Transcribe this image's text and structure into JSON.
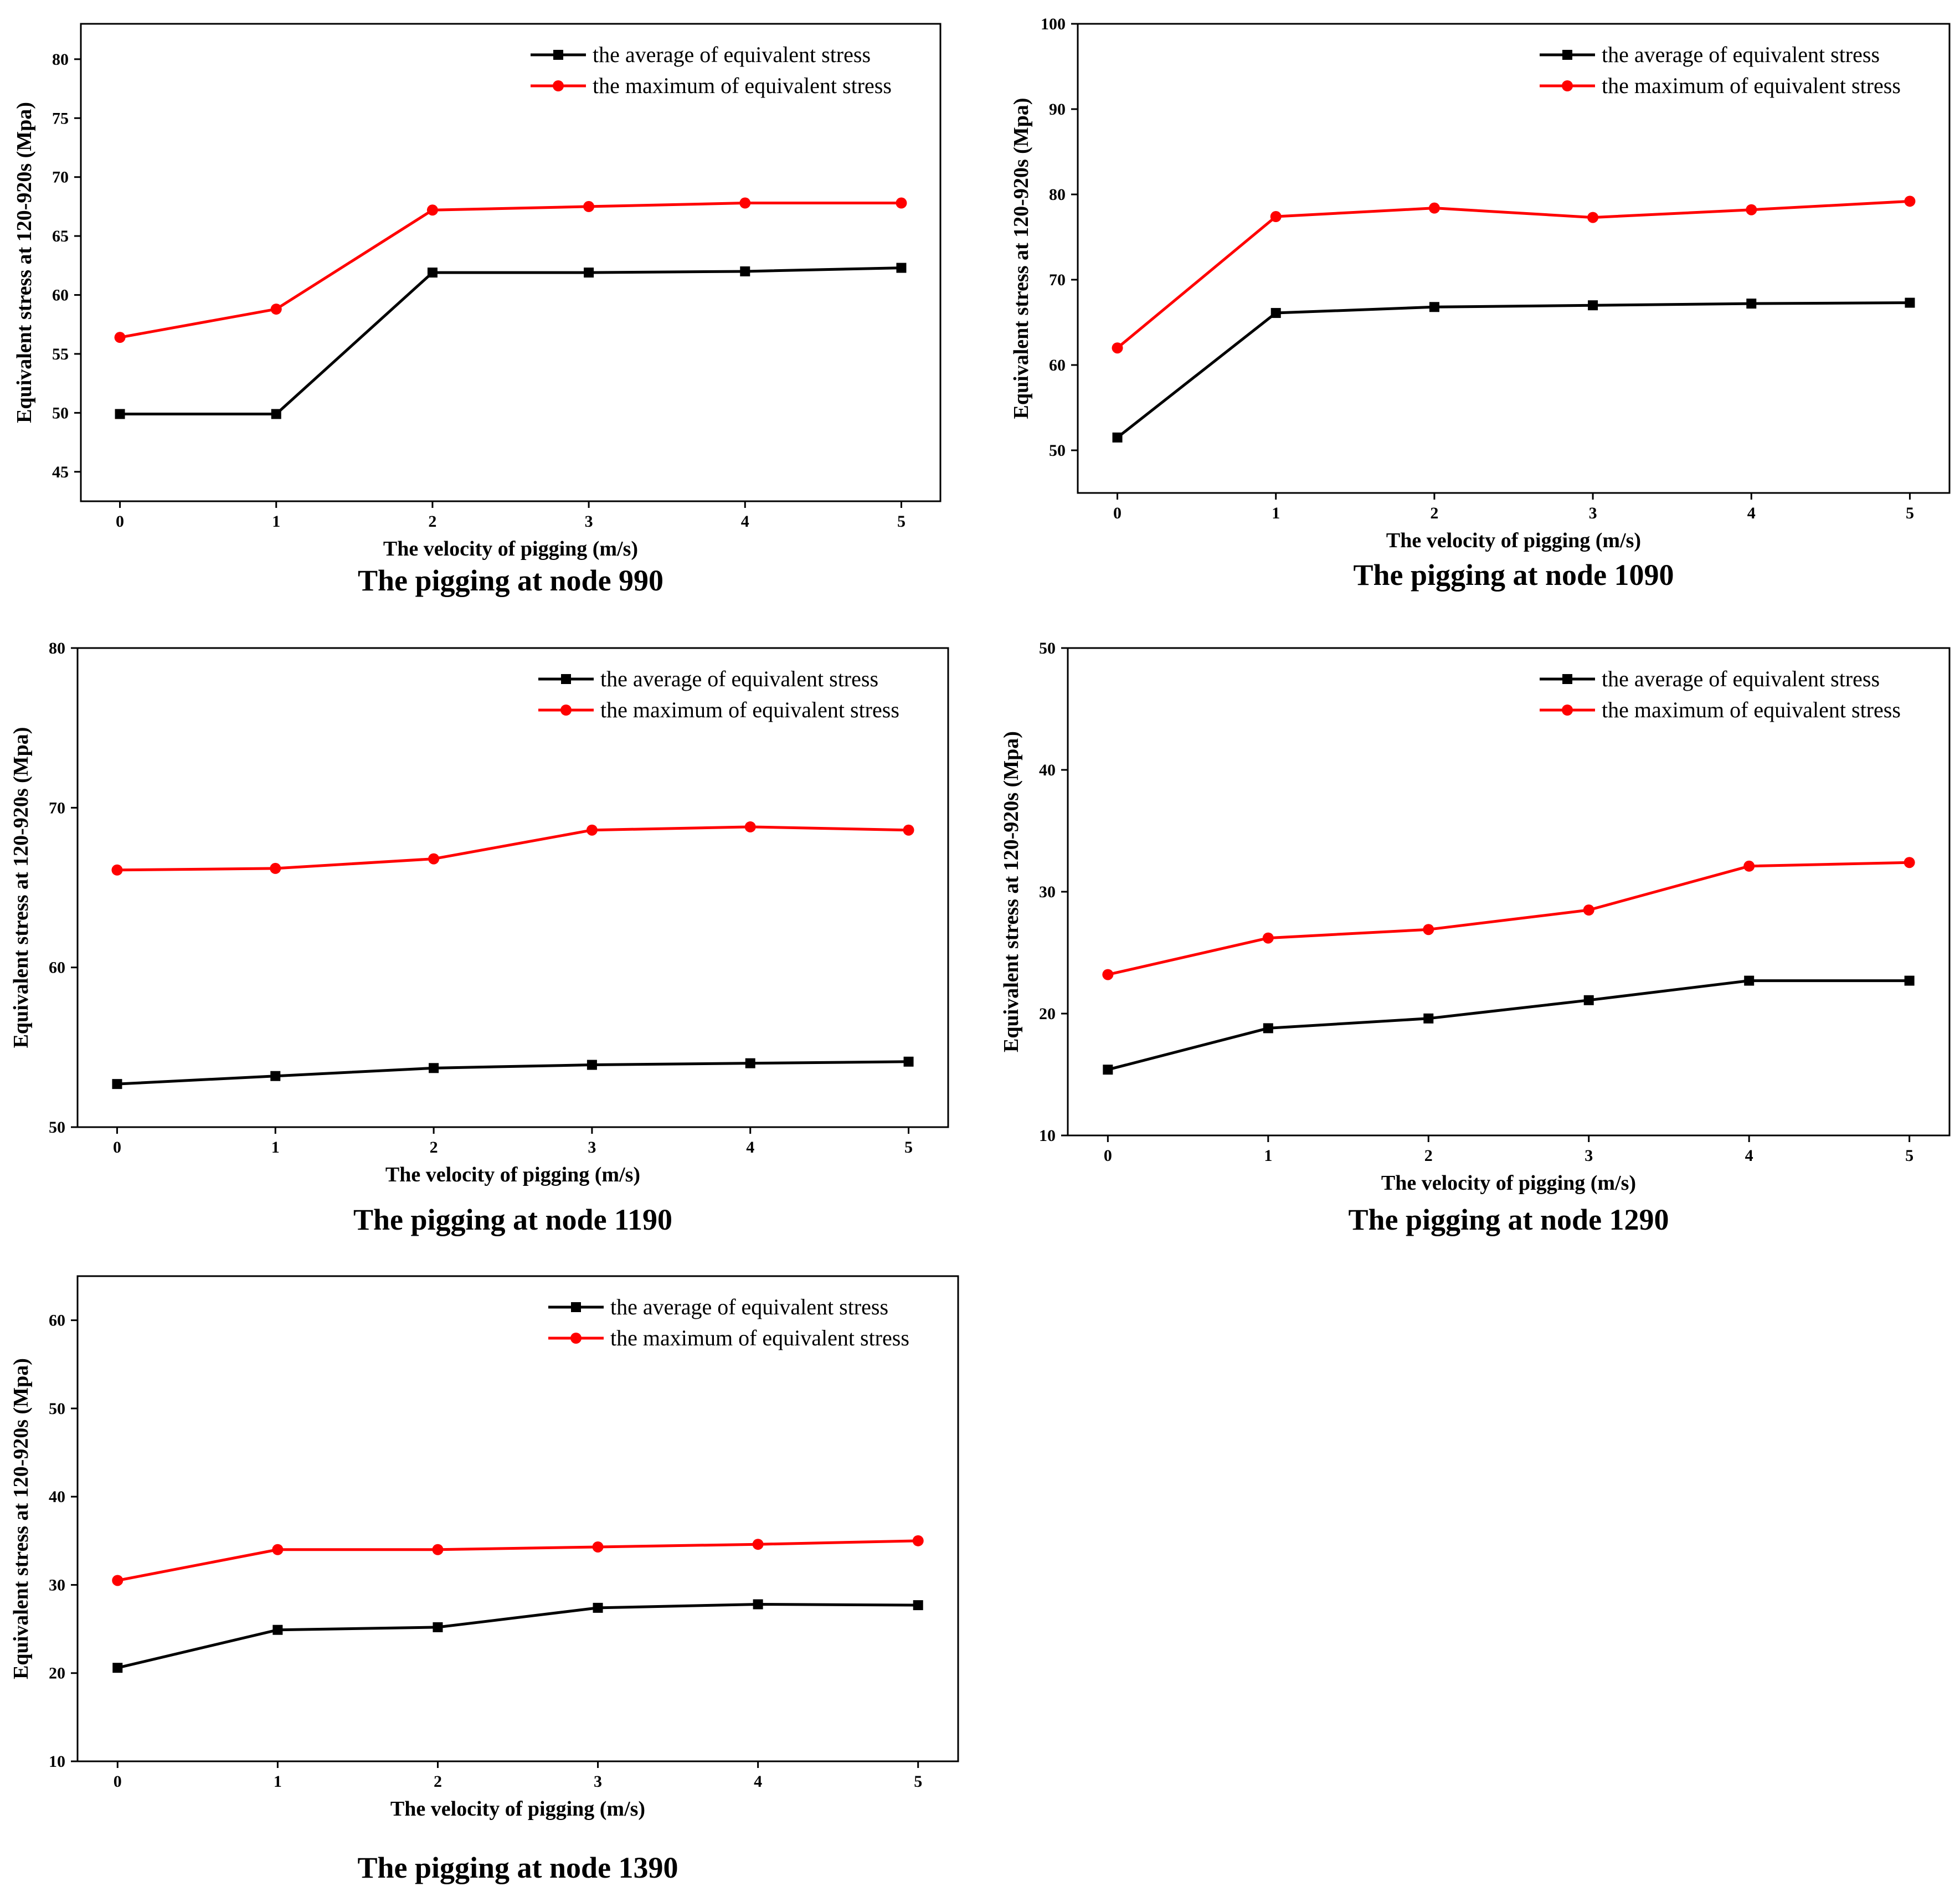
{
  "figure_title": "",
  "colors": {
    "average": "#000000",
    "maximum": "#ff0000",
    "axis": "#000000"
  },
  "chart_data": [
    {
      "type": "line",
      "caption": "The pigging at node 990",
      "xlabel": "The velocity of pigging (m/s)",
      "ylabel": "Equivalent stress at 120-920s (Mpa)",
      "x": [
        0,
        1,
        2,
        3,
        4,
        5
      ],
      "xticks": [
        0,
        1,
        2,
        3,
        4,
        5
      ],
      "xlim": [
        -0.25,
        5.25
      ],
      "ylim": [
        42.5,
        83
      ],
      "yticks": [
        45,
        50,
        55,
        60,
        65,
        70,
        75,
        80
      ],
      "legend_position": "top-right",
      "series": [
        {
          "name": "the average of equivalent stress",
          "marker": "square",
          "values": [
            49.9,
            49.9,
            61.9,
            61.9,
            62.0,
            62.3
          ]
        },
        {
          "name": "the maximum of equivalent stress",
          "marker": "circle",
          "values": [
            56.4,
            58.8,
            67.2,
            67.5,
            67.8,
            67.8
          ]
        }
      ]
    },
    {
      "type": "line",
      "caption": "The pigging at node 1090",
      "xlabel": "The velocity of pigging (m/s)",
      "ylabel": "Equivalent stress at 120-920s (Mpa)",
      "x": [
        0,
        1,
        2,
        3,
        4,
        5
      ],
      "xticks": [
        0,
        1,
        2,
        3,
        4,
        5
      ],
      "xlim": [
        -0.25,
        5.25
      ],
      "ylim": [
        45,
        100
      ],
      "yticks": [
        50,
        60,
        70,
        80,
        90,
        100
      ],
      "legend_position": "top-right",
      "series": [
        {
          "name": "the average of equivalent stress",
          "marker": "square",
          "values": [
            51.5,
            66.1,
            66.8,
            67.0,
            67.2,
            67.3
          ]
        },
        {
          "name": "the maximum of equivalent stress",
          "marker": "circle",
          "values": [
            62.0,
            77.4,
            78.4,
            77.3,
            78.2,
            79.2
          ]
        }
      ]
    },
    {
      "type": "line",
      "caption": "The pigging at node 1190",
      "xlabel": "The velocity of pigging (m/s)",
      "ylabel": "Equivalent stress at 120-920s (Mpa)",
      "x": [
        0,
        1,
        2,
        3,
        4,
        5
      ],
      "xticks": [
        0,
        1,
        2,
        3,
        4,
        5
      ],
      "xlim": [
        -0.25,
        5.25
      ],
      "ylim": [
        50,
        80
      ],
      "yticks": [
        50,
        60,
        70,
        80
      ],
      "legend_position": "top-right",
      "series": [
        {
          "name": "the average of equivalent stress",
          "marker": "square",
          "values": [
            52.7,
            53.2,
            53.7,
            53.9,
            54.0,
            54.1
          ]
        },
        {
          "name": "the maximum of equivalent stress",
          "marker": "circle",
          "values": [
            66.1,
            66.2,
            66.8,
            68.6,
            68.8,
            68.6
          ]
        }
      ]
    },
    {
      "type": "line",
      "caption": "The pigging at node 1290",
      "xlabel": "The velocity of pigging (m/s)",
      "ylabel": "Equivalent stress at 120-920s (Mpa)",
      "x": [
        0,
        1,
        2,
        3,
        4,
        5
      ],
      "xticks": [
        0,
        1,
        2,
        3,
        4,
        5
      ],
      "xlim": [
        -0.25,
        5.25
      ],
      "ylim": [
        10,
        50
      ],
      "yticks": [
        10,
        20,
        30,
        40,
        50
      ],
      "legend_position": "top-right",
      "series": [
        {
          "name": "the average of equivalent stress",
          "marker": "square",
          "values": [
            15.4,
            18.8,
            19.6,
            21.1,
            22.7,
            22.7
          ]
        },
        {
          "name": "the maximum of equivalent stress",
          "marker": "circle",
          "values": [
            23.2,
            26.2,
            26.9,
            28.5,
            32.1,
            32.4
          ]
        }
      ]
    },
    {
      "type": "line",
      "caption": "The pigging at node 1390",
      "xlabel": "The velocity of pigging (m/s)",
      "ylabel": "Equivalent stress at 120-920s (Mpa)",
      "x": [
        0,
        1,
        2,
        3,
        4,
        5
      ],
      "xticks": [
        0,
        1,
        2,
        3,
        4,
        5
      ],
      "xlim": [
        -0.25,
        5.25
      ],
      "ylim": [
        10,
        65
      ],
      "yticks": [
        10,
        20,
        30,
        40,
        50,
        60
      ],
      "legend_position": "top-right",
      "series": [
        {
          "name": "the average of equivalent stress",
          "marker": "square",
          "values": [
            20.6,
            24.9,
            25.2,
            27.4,
            27.8,
            27.7
          ]
        },
        {
          "name": "the maximum of equivalent stress",
          "marker": "circle",
          "values": [
            30.5,
            34.0,
            34.0,
            34.3,
            34.6,
            35.0
          ]
        }
      ]
    }
  ]
}
